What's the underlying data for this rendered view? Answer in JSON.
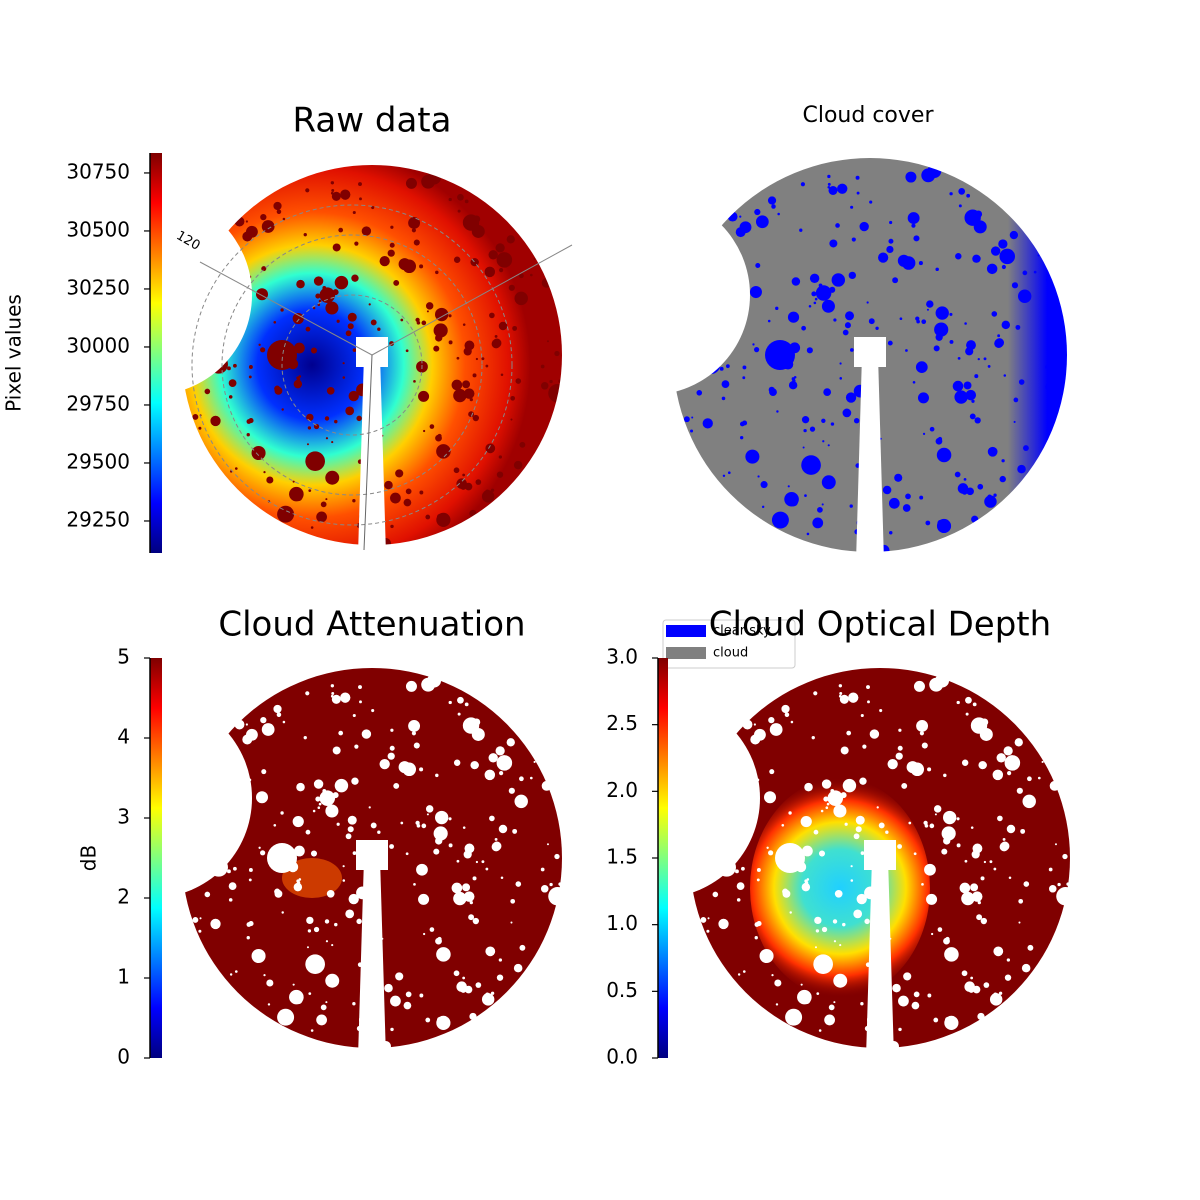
{
  "chart_data": [
    {
      "type": "image",
      "title": "Raw data",
      "annotations": [
        "120"
      ],
      "colorbar": {
        "label": "Pixel values",
        "colormap": "jet",
        "lim": [
          29112,
          30836
        ],
        "ticks": [
          29250,
          29500,
          29750,
          30000,
          30250,
          30500,
          30750
        ]
      }
    },
    {
      "type": "image",
      "title": "Cloud cover",
      "legend": "upper left",
      "series": [
        {
          "name": "clear sky",
          "color": "#0000ff"
        },
        {
          "name": "cloud",
          "color": "#808080"
        }
      ]
    },
    {
      "type": "image",
      "title": "Cloud Attenuation",
      "colorbar": {
        "label": "dB",
        "colormap": "jet",
        "lim": [
          0,
          5
        ],
        "ticks": [
          0,
          1,
          2,
          3,
          4,
          5
        ]
      }
    },
    {
      "type": "image",
      "title": "Cloud Optical Depth",
      "colorbar": {
        "colormap": "jet",
        "lim": [
          0,
          3
        ],
        "ticks": [
          {
            "value": 0,
            "label": "0.0"
          },
          {
            "value": 0.5,
            "label": "0.5"
          },
          {
            "value": 1,
            "label": "1.0"
          },
          {
            "value": 1.5,
            "label": "1.5"
          },
          {
            "value": 2,
            "label": "2.0"
          },
          {
            "value": 2.5,
            "label": "2.5"
          },
          {
            "value": 3,
            "label": "3.0"
          }
        ]
      }
    }
  ]
}
